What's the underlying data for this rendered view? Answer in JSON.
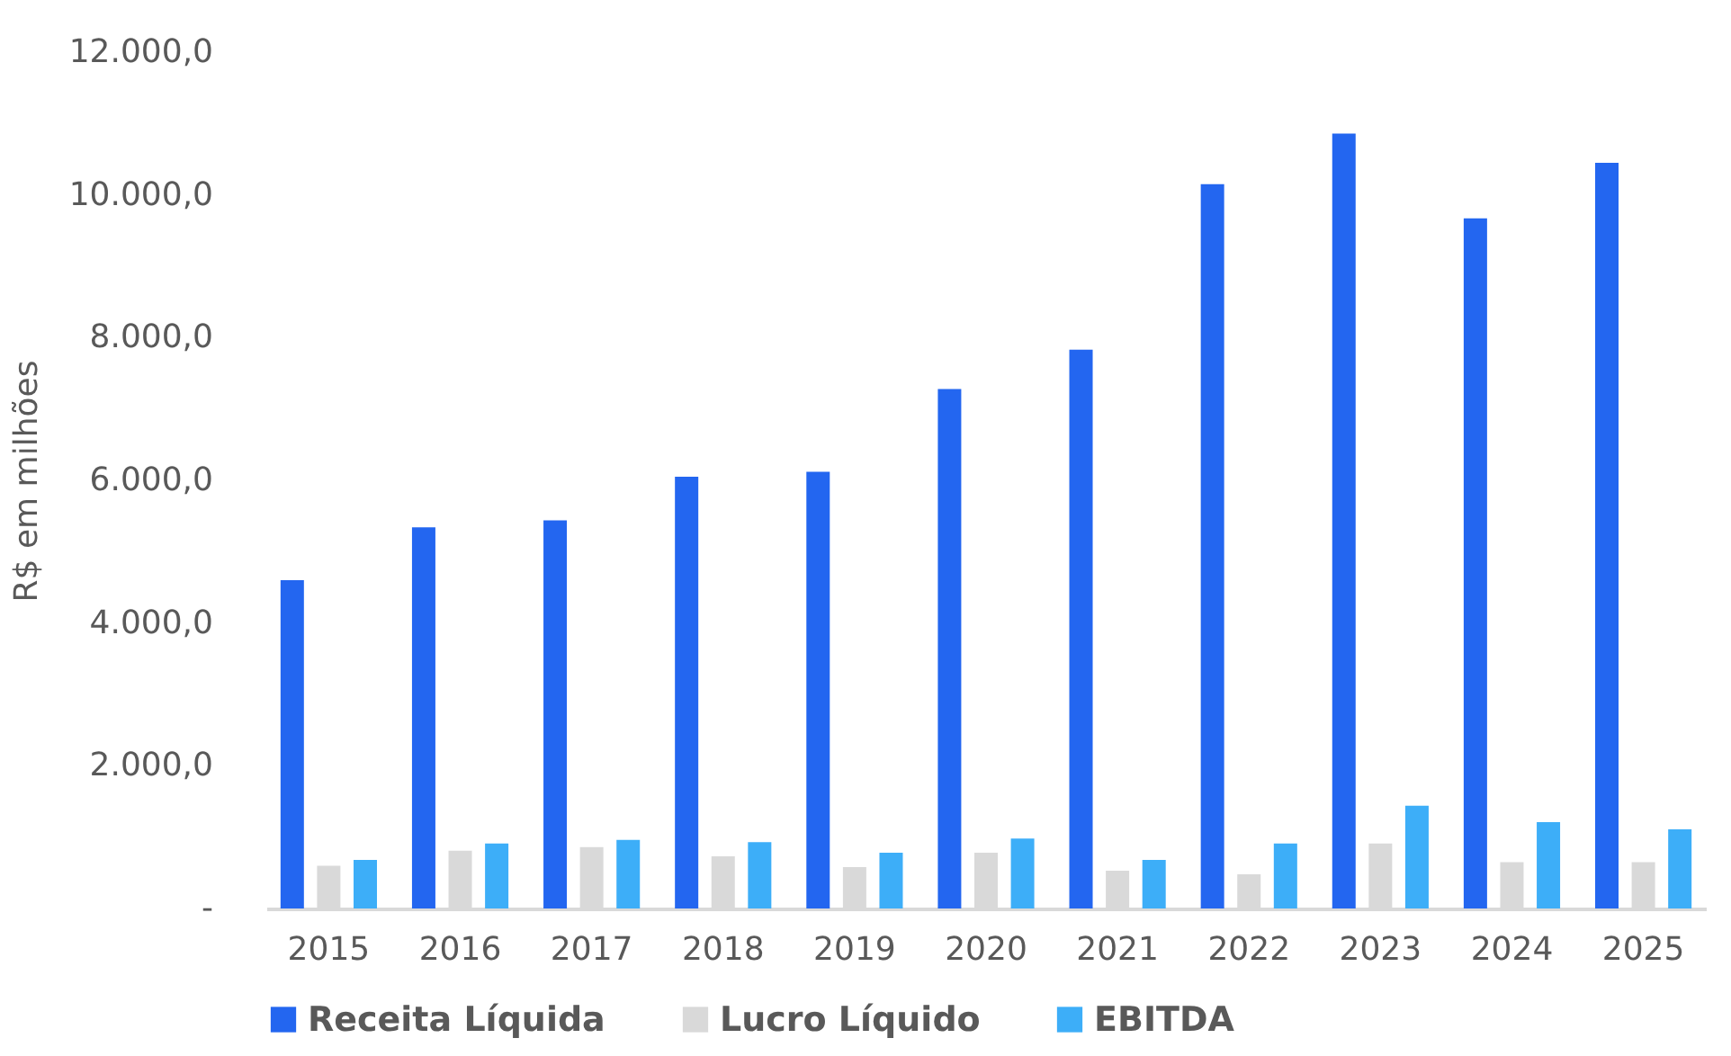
{
  "chart_data": {
    "type": "bar",
    "ylabel": "R$ em milhões",
    "categories": [
      "2015",
      "2016",
      "2017",
      "2018",
      "2019",
      "2020",
      "2021",
      "2022",
      "2023",
      "2024",
      "2025"
    ],
    "series": [
      {
        "name": "Receita Líquida",
        "color": "#2366f0",
        "values": [
          4600,
          5340,
          5440,
          6050,
          6120,
          7280,
          7830,
          10150,
          10860,
          9670,
          10450
        ]
      },
      {
        "name": "Lucro Líquido",
        "color": "#d9d9d9",
        "values": [
          600,
          810,
          860,
          730,
          580,
          780,
          530,
          480,
          910,
          650,
          650
        ]
      },
      {
        "name": "EBITDA",
        "color": "#3daef8",
        "values": [
          680,
          910,
          960,
          930,
          780,
          980,
          680,
          910,
          1440,
          1210,
          1110
        ]
      }
    ],
    "ylim": [
      0,
      12000
    ],
    "yticks": [
      {
        "value": 0,
        "label": "-"
      },
      {
        "value": 2000,
        "label": "2.000,0"
      },
      {
        "value": 4000,
        "label": "4.000,0"
      },
      {
        "value": 6000,
        "label": "6.000,0"
      },
      {
        "value": 8000,
        "label": "8.000,0"
      },
      {
        "value": 10000,
        "label": "10.000,0"
      },
      {
        "value": 12000,
        "label": "12.000,0"
      }
    ],
    "grid": false,
    "legend": "bottom"
  }
}
